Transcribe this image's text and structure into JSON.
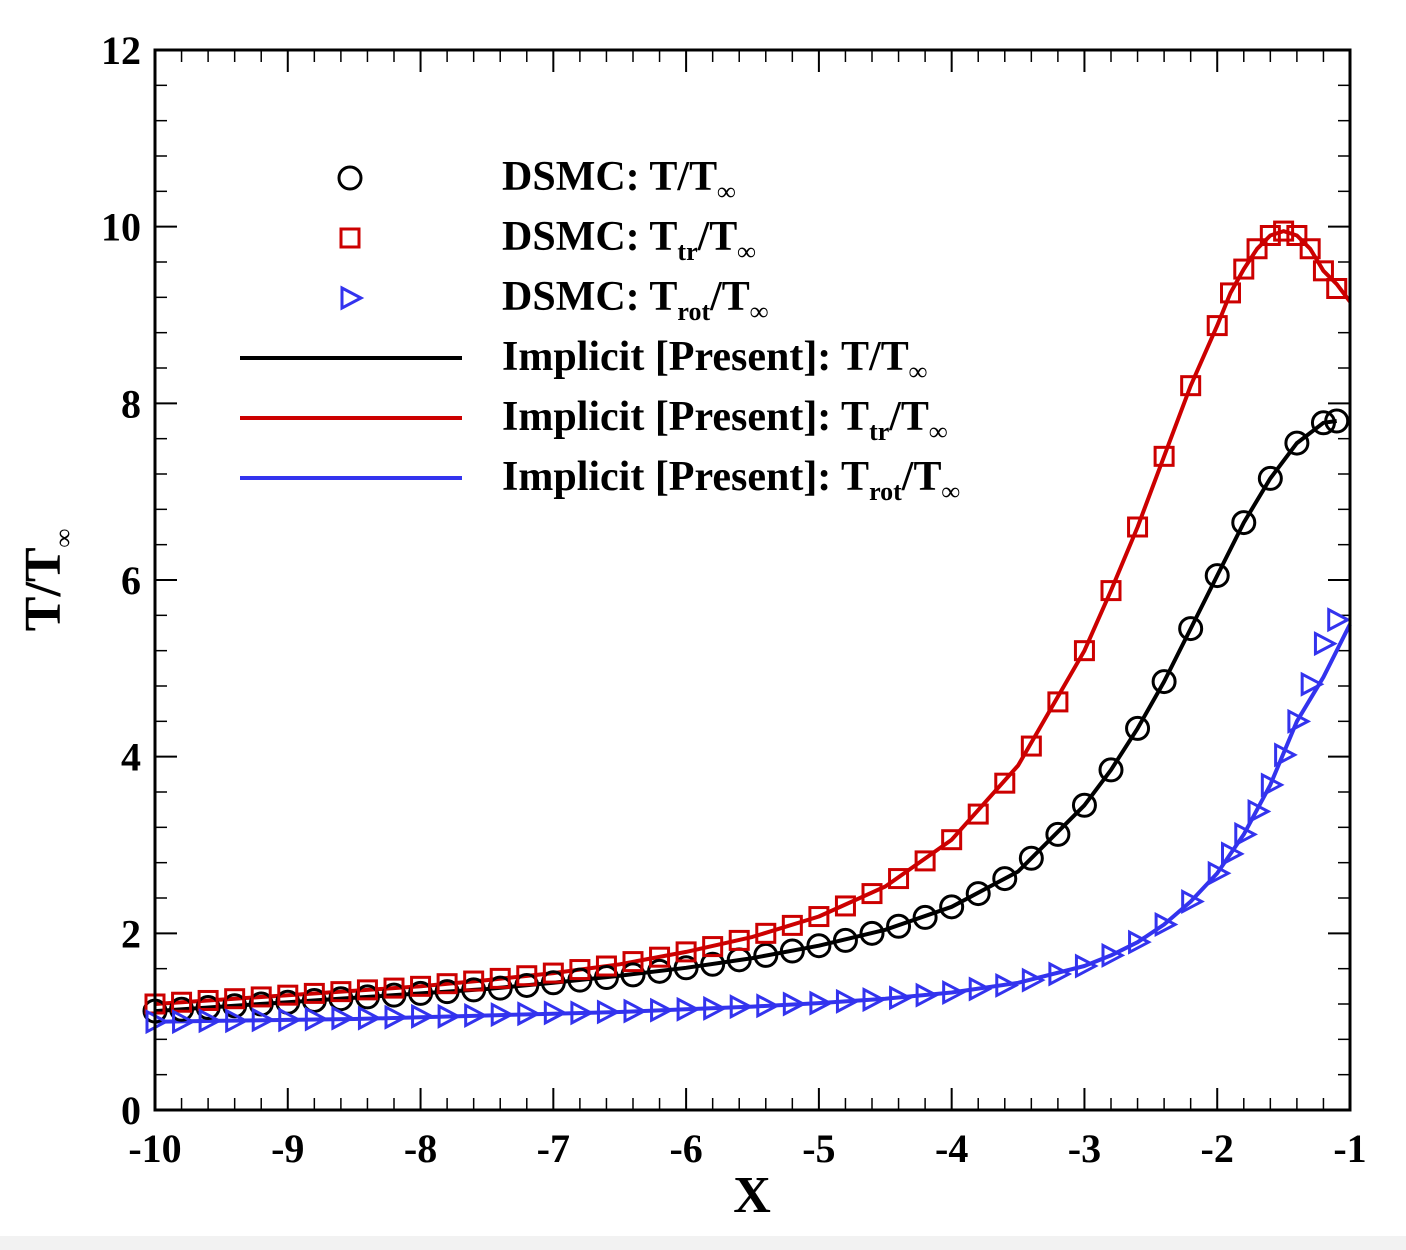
{
  "chart_data": {
    "type": "line",
    "title": "",
    "xlabel": "X",
    "ylabel": {
      "main": "T/T",
      "sub": "∞"
    },
    "xlim": [
      -10,
      -1
    ],
    "ylim": [
      0,
      12
    ],
    "xticks": [
      -10,
      -9,
      -8,
      -7,
      -6,
      -5,
      -4,
      -3,
      -2,
      -1
    ],
    "yticks": [
      0,
      2,
      4,
      6,
      8,
      10,
      12
    ],
    "xtick_labels": [
      "-10",
      "-9",
      "-8",
      "-7",
      "-6",
      "-5",
      "-4",
      "-3",
      "-2",
      "-1"
    ],
    "ytick_labels": [
      "0",
      "2",
      "4",
      "6",
      "8",
      "10",
      "12"
    ],
    "legend_position": "top-left",
    "colors": {
      "black": "#000000",
      "red": "#cc0000",
      "blue": "#3333ee"
    },
    "series": [
      {
        "name": "DSMC: T/T∞",
        "label": {
          "prefix": "DSMC: ",
          "main": "T",
          "sub": "",
          "suffix": "/T",
          "sub2": "∞"
        },
        "kind": "marker",
        "marker": "circle",
        "color": "#000000",
        "x": [
          -10,
          -9.8,
          -9.6,
          -9.4,
          -9.2,
          -9.0,
          -8.8,
          -8.6,
          -8.4,
          -8.2,
          -8.0,
          -7.8,
          -7.6,
          -7.4,
          -7.2,
          -7.0,
          -6.8,
          -6.6,
          -6.4,
          -6.2,
          -6.0,
          -5.8,
          -5.6,
          -5.4,
          -5.2,
          -5.0,
          -4.8,
          -4.6,
          -4.4,
          -4.2,
          -4.0,
          -3.8,
          -3.6,
          -3.4,
          -3.2,
          -3.0,
          -2.8,
          -2.6,
          -2.4,
          -2.2,
          -2.0,
          -1.8,
          -1.6,
          -1.4,
          -1.2,
          -1.1
        ],
        "y": [
          1.12,
          1.14,
          1.16,
          1.18,
          1.2,
          1.22,
          1.24,
          1.26,
          1.28,
          1.3,
          1.32,
          1.34,
          1.36,
          1.38,
          1.41,
          1.44,
          1.47,
          1.5,
          1.53,
          1.57,
          1.61,
          1.65,
          1.7,
          1.75,
          1.8,
          1.86,
          1.92,
          2.0,
          2.08,
          2.18,
          2.3,
          2.45,
          2.62,
          2.85,
          3.12,
          3.45,
          3.85,
          4.32,
          4.85,
          5.45,
          6.05,
          6.65,
          7.15,
          7.55,
          7.78,
          7.8
        ]
      },
      {
        "name": "DSMC: Ttr/T∞",
        "label": {
          "prefix": "DSMC: ",
          "main": "T",
          "sub": "tr",
          "suffix": "/T",
          "sub2": "∞"
        },
        "kind": "marker",
        "marker": "square",
        "color": "#cc0000",
        "x": [
          -10,
          -9.8,
          -9.6,
          -9.4,
          -9.2,
          -9.0,
          -8.8,
          -8.6,
          -8.4,
          -8.2,
          -8.0,
          -7.8,
          -7.6,
          -7.4,
          -7.2,
          -7.0,
          -6.8,
          -6.6,
          -6.4,
          -6.2,
          -6.0,
          -5.8,
          -5.6,
          -5.4,
          -5.2,
          -5.0,
          -4.8,
          -4.6,
          -4.4,
          -4.2,
          -4.0,
          -3.8,
          -3.6,
          -3.4,
          -3.2,
          -3.0,
          -2.8,
          -2.6,
          -2.4,
          -2.2,
          -2.0,
          -1.9,
          -1.8,
          -1.7,
          -1.6,
          -1.5,
          -1.4,
          -1.3,
          -1.2,
          -1.1
        ],
        "y": [
          1.2,
          1.22,
          1.24,
          1.26,
          1.28,
          1.3,
          1.32,
          1.34,
          1.36,
          1.38,
          1.4,
          1.43,
          1.46,
          1.49,
          1.52,
          1.55,
          1.59,
          1.63,
          1.68,
          1.73,
          1.79,
          1.85,
          1.92,
          2.0,
          2.09,
          2.19,
          2.31,
          2.45,
          2.62,
          2.82,
          3.06,
          3.35,
          3.7,
          4.12,
          4.62,
          5.2,
          5.88,
          6.6,
          7.4,
          8.2,
          8.88,
          9.25,
          9.52,
          9.75,
          9.9,
          9.95,
          9.9,
          9.75,
          9.5,
          9.3
        ]
      },
      {
        "name": "DSMC: Trot/T∞",
        "label": {
          "prefix": "DSMC: ",
          "main": "T",
          "sub": "rot",
          "suffix": "/T",
          "sub2": "∞"
        },
        "kind": "marker",
        "marker": "triangle-right",
        "color": "#3333ee",
        "x": [
          -10,
          -9.8,
          -9.6,
          -9.4,
          -9.2,
          -9.0,
          -8.8,
          -8.6,
          -8.4,
          -8.2,
          -8.0,
          -7.8,
          -7.6,
          -7.4,
          -7.2,
          -7.0,
          -6.8,
          -6.6,
          -6.4,
          -6.2,
          -6.0,
          -5.8,
          -5.6,
          -5.4,
          -5.2,
          -5.0,
          -4.8,
          -4.6,
          -4.4,
          -4.2,
          -4.0,
          -3.8,
          -3.6,
          -3.4,
          -3.2,
          -3.0,
          -2.8,
          -2.6,
          -2.4,
          -2.2,
          -2.0,
          -1.9,
          -1.8,
          -1.7,
          -1.6,
          -1.5,
          -1.4,
          -1.3,
          -1.2,
          -1.1
        ],
        "y": [
          1.0,
          1.0,
          1.01,
          1.01,
          1.02,
          1.02,
          1.03,
          1.04,
          1.04,
          1.05,
          1.06,
          1.06,
          1.07,
          1.08,
          1.09,
          1.1,
          1.1,
          1.11,
          1.12,
          1.13,
          1.14,
          1.15,
          1.17,
          1.18,
          1.2,
          1.21,
          1.23,
          1.25,
          1.27,
          1.3,
          1.33,
          1.37,
          1.41,
          1.47,
          1.54,
          1.63,
          1.75,
          1.9,
          2.1,
          2.36,
          2.68,
          2.9,
          3.12,
          3.38,
          3.68,
          4.02,
          4.4,
          4.82,
          5.28,
          5.55
        ]
      },
      {
        "name": "Implicit [Present]: T/T∞",
        "label": {
          "prefix": "Implicit [Present]: ",
          "main": "T",
          "sub": "",
          "suffix": "/T",
          "sub2": "∞"
        },
        "kind": "line",
        "color": "#000000",
        "x": [
          -10,
          -9.5,
          -9.0,
          -8.5,
          -8.0,
          -7.5,
          -7.0,
          -6.5,
          -6.0,
          -5.5,
          -5.0,
          -4.5,
          -4.0,
          -3.5,
          -3.0,
          -2.8,
          -2.6,
          -2.4,
          -2.2,
          -2.0,
          -1.8,
          -1.6,
          -1.4,
          -1.2,
          -1.1
        ],
        "y": [
          1.12,
          1.17,
          1.22,
          1.27,
          1.32,
          1.37,
          1.44,
          1.52,
          1.61,
          1.72,
          1.86,
          2.04,
          2.3,
          2.7,
          3.45,
          3.85,
          4.32,
          4.85,
          5.45,
          6.05,
          6.65,
          7.15,
          7.55,
          7.78,
          7.8
        ]
      },
      {
        "name": "Implicit [Present]: Ttr/T∞",
        "label": {
          "prefix": "Implicit [Present]: ",
          "main": "T",
          "sub": "tr",
          "suffix": "/T",
          "sub2": "∞"
        },
        "kind": "line",
        "color": "#cc0000",
        "x": [
          -10,
          -9.5,
          -9.0,
          -8.5,
          -8.0,
          -7.5,
          -7.0,
          -6.5,
          -6.0,
          -5.5,
          -5.0,
          -4.5,
          -4.0,
          -3.5,
          -3.0,
          -2.8,
          -2.6,
          -2.4,
          -2.2,
          -2.0,
          -1.9,
          -1.8,
          -1.7,
          -1.6,
          -1.5,
          -1.4,
          -1.3,
          -1.2,
          -1.1,
          -1.0
        ],
        "y": [
          1.2,
          1.25,
          1.3,
          1.35,
          1.4,
          1.47,
          1.55,
          1.65,
          1.79,
          1.96,
          2.19,
          2.53,
          3.06,
          3.9,
          5.2,
          5.88,
          6.6,
          7.4,
          8.2,
          8.88,
          9.25,
          9.52,
          9.75,
          9.9,
          9.95,
          9.9,
          9.75,
          9.5,
          9.35,
          9.15
        ]
      },
      {
        "name": "Implicit [Present]: Trot/T∞",
        "label": {
          "prefix": "Implicit [Present]: ",
          "main": "T",
          "sub": "rot",
          "suffix": "/T",
          "sub2": "∞"
        },
        "kind": "line",
        "color": "#3333ee",
        "x": [
          -10,
          -9.5,
          -9.0,
          -8.5,
          -8.0,
          -7.5,
          -7.0,
          -6.5,
          -6.0,
          -5.5,
          -5.0,
          -4.5,
          -4.0,
          -3.5,
          -3.0,
          -2.8,
          -2.6,
          -2.4,
          -2.2,
          -2.0,
          -1.8,
          -1.6,
          -1.4,
          -1.2,
          -1.0
        ],
        "y": [
          1.0,
          1.01,
          1.02,
          1.03,
          1.05,
          1.07,
          1.09,
          1.11,
          1.14,
          1.17,
          1.21,
          1.26,
          1.33,
          1.44,
          1.63,
          1.75,
          1.9,
          2.1,
          2.36,
          2.68,
          3.12,
          3.68,
          4.4,
          4.9,
          5.5
        ]
      }
    ]
  }
}
